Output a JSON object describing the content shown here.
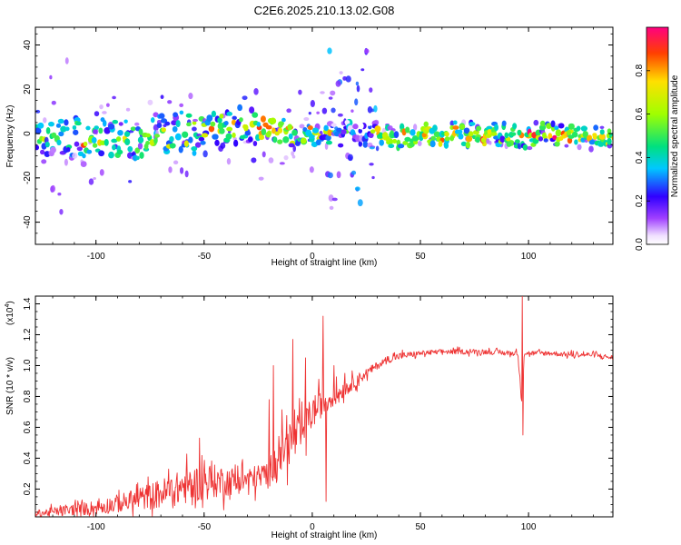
{
  "title": "C2E6.2025.210.13.02.G08",
  "chart_data": [
    {
      "type": "heatmap",
      "xlabel": "Height of straight line (km)",
      "ylabel": "Frequency (Hz)",
      "xlim": [
        -128,
        139
      ],
      "ylim": [
        -50,
        48
      ],
      "xticks": [
        -100,
        -50,
        0,
        50,
        100
      ],
      "yticks": [
        -40,
        -20,
        0,
        20,
        40
      ],
      "colorbar": {
        "label": "Normalized spectral amplitude",
        "range": [
          0,
          1
        ],
        "ticks": [
          "0.0",
          "0.2",
          "0.4",
          "0.6",
          "0.8"
        ],
        "tick_values": [
          0.0,
          0.2,
          0.4,
          0.6,
          0.8
        ]
      },
      "bands": [
        {
          "x0": -128,
          "x1": -110,
          "center": -2,
          "halfwidth": 8,
          "level": 0.4,
          "scatter": 0.12,
          "spread": 45
        },
        {
          "x0": -110,
          "x1": -75,
          "center": -3,
          "halfwidth": 9,
          "level": 0.5,
          "scatter": 0.1,
          "spread": 20
        },
        {
          "x0": -75,
          "x1": -50,
          "center": 0,
          "halfwidth": 8,
          "level": 0.5,
          "scatter": 0.1,
          "spread": 20
        },
        {
          "x0": -50,
          "x1": -26,
          "center": 3,
          "halfwidth": 8,
          "level": 0.55,
          "scatter": 0.1,
          "spread": 20
        },
        {
          "x0": -26,
          "x1": -10,
          "center": 1,
          "halfwidth": 4,
          "level": 0.85,
          "scatter": 0.08,
          "spread": 25
        },
        {
          "x0": -10,
          "x1": 8,
          "center": -1,
          "halfwidth": 3,
          "level": 0.55,
          "scatter": 0.1,
          "spread": 20
        },
        {
          "x0": 8,
          "x1": 30,
          "center": 0,
          "halfwidth": 4,
          "level": 0.25,
          "scatter": 0.45,
          "spread": 40
        },
        {
          "x0": 30,
          "x1": 139,
          "center": -1,
          "halfwidth": 4,
          "level": 0.7,
          "scatter": 0.02,
          "spread": 6
        }
      ]
    },
    {
      "type": "line",
      "xlabel": "Height of straight line (km)",
      "ylabel": "SNR (10 * v/v)",
      "multiplier": "(x10",
      "multiplier_exp": "4",
      "multiplier_close": ")",
      "xlim": [
        -128,
        139
      ],
      "ylim": [
        0.02,
        1.45
      ],
      "xticks": [
        -100,
        -50,
        0,
        50,
        100
      ],
      "yticks": [
        0.2,
        0.4,
        0.6,
        0.8,
        1.0,
        1.2,
        1.4
      ],
      "ytick_labels": [
        "0.2",
        "0.4",
        "0.6",
        "0.8",
        "1.0",
        "1.2",
        "1.4"
      ],
      "series": [
        {
          "color": "#ee3333",
          "x": [
            -128,
            -115,
            -100,
            -85,
            -70,
            -60,
            -50,
            -40,
            -30,
            -25,
            -20,
            -15,
            -10,
            -5,
            0,
            5,
            10,
            15,
            20,
            25,
            30,
            35,
            40,
            50,
            60,
            70,
            80,
            90,
            95,
            97,
            98,
            100,
            110,
            120,
            130,
            139
          ],
          "y": [
            0.04,
            0.06,
            0.08,
            0.12,
            0.17,
            0.21,
            0.25,
            0.25,
            0.26,
            0.28,
            0.3,
            0.45,
            0.5,
            0.55,
            0.7,
            0.76,
            0.8,
            0.85,
            0.9,
            0.95,
            1.0,
            1.04,
            1.06,
            1.08,
            1.09,
            1.09,
            1.09,
            1.08,
            1.08,
            0.75,
            1.08,
            1.08,
            1.08,
            1.07,
            1.07,
            1.05
          ],
          "noise": [
            0.03,
            0.04,
            0.06,
            0.08,
            0.12,
            0.14,
            0.15,
            0.12,
            0.1,
            0.1,
            0.12,
            0.16,
            0.18,
            0.15,
            0.14,
            0.1,
            0.08,
            0.06,
            0.05,
            0.04,
            0.03,
            0.03,
            0.03,
            0.02,
            0.02,
            0.02,
            0.02,
            0.02,
            0.02,
            0.02,
            0.02,
            0.02,
            0.02,
            0.02,
            0.02,
            0.02
          ],
          "spikes": [
            {
              "x": -52,
              "y": 0.53
            },
            {
              "x": -20,
              "y": 0.78
            },
            {
              "x": -18,
              "y": 1.0
            },
            {
              "x": -9,
              "y": 1.17
            },
            {
              "x": -3,
              "y": 1.05
            },
            {
              "x": 5,
              "y": 1.32
            },
            {
              "x": 6.5,
              "y": 0.12
            },
            {
              "x": 10,
              "y": 1.0
            },
            {
              "x": 15,
              "y": 0.95
            },
            {
              "x": 97,
              "y": 1.45
            },
            {
              "x": 97.5,
              "y": 0.55
            }
          ]
        }
      ]
    }
  ]
}
